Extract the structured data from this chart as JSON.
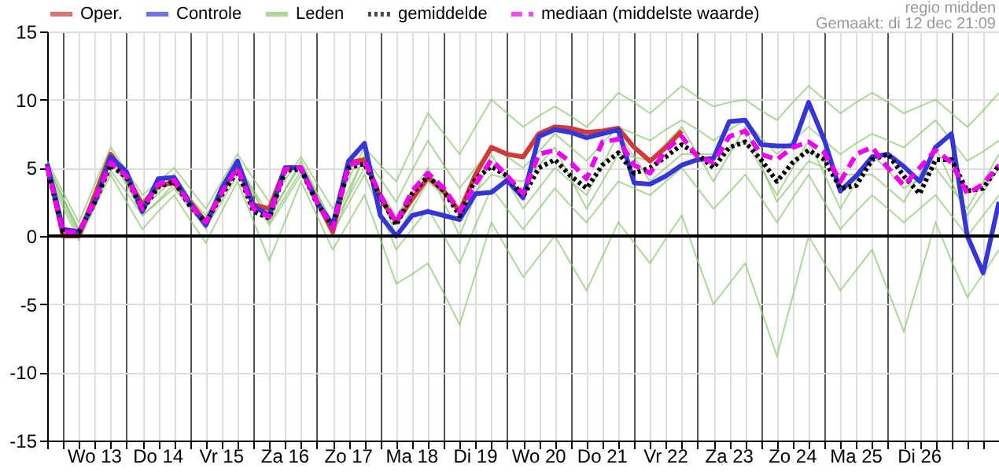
{
  "chart_data": {
    "type": "line",
    "annotations": [
      "regio midden",
      "Gemaakt: di 12 dec 21:09"
    ],
    "categories": [
      null,
      null,
      null,
      "Wo 13",
      null,
      null,
      null,
      "Do 14",
      null,
      null,
      null,
      "Vr 15",
      null,
      null,
      null,
      "Za 16",
      null,
      null,
      null,
      "Zo 17",
      null,
      null,
      null,
      "Ma 18",
      null,
      null,
      null,
      "Di 19",
      null,
      null,
      null,
      "Wo 20",
      null,
      null,
      null,
      "Do 21",
      null,
      null,
      null,
      "Vr 22",
      null,
      null,
      null,
      "Za 23",
      null,
      null,
      null,
      "Zo 24",
      null,
      null,
      null,
      "Ma 25",
      null,
      null,
      null,
      "Di 26",
      null,
      null,
      null,
      null,
      null
    ],
    "series": [
      {
        "name": "Oper.",
        "color": "#d03a3a",
        "values": [
          5.3,
          0.0,
          0.0,
          3.0,
          6.0,
          4.4,
          2.3,
          3.7,
          3.9,
          2.5,
          1.0,
          3.2,
          5.3,
          2.3,
          2.0,
          5.0,
          5.0,
          2.6,
          0.3,
          5.4,
          5.6,
          2.8,
          1.0,
          2.7,
          4.3,
          3.3,
          1.8,
          4.5,
          6.5,
          6.0,
          5.8,
          7.5,
          8.0,
          7.9,
          7.6,
          7.7,
          7.9,
          6.5,
          5.5,
          6.5,
          7.7,
          null,
          null,
          null,
          null,
          null,
          null,
          null,
          null,
          null,
          null,
          null,
          null,
          null,
          null,
          null,
          null,
          null,
          null,
          null,
          null
        ]
      },
      {
        "name": "Controle",
        "color": "#3636d6",
        "values": [
          5.3,
          0.5,
          0.3,
          2.5,
          5.8,
          4.7,
          1.8,
          4.2,
          4.3,
          2.4,
          0.8,
          3.5,
          5.5,
          2.2,
          1.5,
          5.0,
          5.0,
          2.5,
          0.8,
          5.5,
          6.8,
          1.5,
          0.0,
          1.5,
          1.8,
          1.5,
          1.2,
          3.1,
          3.2,
          4.1,
          2.8,
          7.3,
          7.8,
          7.6,
          7.2,
          7.5,
          7.8,
          3.9,
          3.8,
          4.4,
          5.2,
          5.6,
          5.7,
          8.4,
          8.5,
          6.7,
          6.6,
          6.6,
          9.8,
          7.0,
          3.3,
          4.4,
          5.8,
          6.0,
          5.1,
          4.0,
          6.5,
          7.5,
          0.0,
          -2.7,
          2.5
        ]
      },
      {
        "name": "Leden",
        "color": "#8cc870",
        "values": [
          5.5,
          3.2,
          1.0,
          3.8,
          6.5,
          4.8,
          3.0,
          4.0,
          5.0,
          3.5,
          2.0,
          4.0,
          6.0,
          4.2,
          2.5,
          4.1,
          5.8,
          3.9,
          2.0,
          4.2,
          6.5,
          5.2,
          4.0,
          6.5,
          9.0,
          7.5,
          6.0,
          8.0,
          10.0,
          9.0,
          8.0,
          8.8,
          9.5,
          8.8,
          8.0,
          9.2,
          10.5,
          9.8,
          9.0,
          10.0,
          11.0,
          10.2,
          9.5,
          9.8,
          10.0,
          9.2,
          8.5,
          9.8,
          11.0,
          10.0,
          9.0,
          9.8,
          10.5,
          9.8,
          9.0,
          9.5,
          10.0,
          9.0,
          8.0,
          9.2,
          10.5
        ]
      },
      {
        "name": "gemiddelde",
        "color": "#000000",
        "line_style": "dotted",
        "values": [
          5.0,
          0.3,
          0.3,
          2.5,
          5.2,
          4.3,
          1.9,
          3.6,
          4.0,
          2.2,
          1.0,
          3.0,
          4.8,
          1.8,
          1.3,
          4.8,
          4.9,
          2.4,
          0.7,
          5.0,
          5.3,
          2.9,
          0.8,
          3.1,
          4.4,
          3.3,
          1.5,
          4.2,
          5.1,
          4.4,
          2.9,
          5.0,
          5.6,
          4.4,
          3.5,
          5.2,
          6.1,
          4.6,
          5.0,
          5.8,
          6.7,
          6.0,
          5.0,
          6.5,
          6.9,
          5.6,
          4.0,
          5.4,
          6.3,
          5.6,
          3.5,
          3.7,
          5.6,
          6.0,
          4.4,
          3.1,
          5.6,
          5.6,
          3.3,
          3.5,
          5.2
        ]
      },
      {
        "name": "mediaan (middelste waarde)",
        "color": "#ee00ee",
        "line_style": "dashed",
        "values": [
          5.1,
          0.3,
          0.3,
          2.6,
          5.4,
          4.4,
          2.0,
          3.8,
          4.1,
          2.3,
          1.0,
          3.2,
          5.0,
          2.0,
          1.4,
          4.9,
          5.0,
          2.5,
          0.6,
          5.2,
          5.5,
          3.0,
          1.0,
          3.3,
          4.6,
          3.5,
          1.8,
          3.8,
          5.6,
          4.4,
          3.1,
          6.0,
          6.3,
          5.4,
          4.2,
          6.9,
          7.1,
          5.2,
          4.6,
          6.3,
          7.3,
          5.8,
          5.4,
          7.3,
          7.7,
          6.0,
          5.6,
          6.5,
          6.9,
          6.1,
          4.0,
          6.0,
          6.5,
          5.0,
          3.7,
          5.0,
          6.3,
          5.4,
          3.1,
          3.8,
          5.2
        ]
      },
      {
        "color": "#8cc870",
        "values": [
          4.5,
          2.1,
          -0.3,
          2.1,
          4.5,
          2.5,
          0.5,
          1.8,
          3.0,
          1.2,
          -0.5,
          1.8,
          4.0,
          1.1,
          -1.8,
          1.1,
          4.0,
          1.5,
          -1.0,
          1.0,
          3.0,
          -0.2,
          -3.5,
          -2.8,
          -2.0,
          -4.2,
          -6.5,
          -2.8,
          1.0,
          -1.0,
          -3.0,
          -1.5,
          0.0,
          -2.0,
          -4.0,
          -1.5,
          1.0,
          -0.5,
          -2.0,
          -0.2,
          1.5,
          -1.8,
          -5.0,
          -3.5,
          -2.0,
          -5.4,
          -8.8,
          -4.4,
          0.0,
          -2.0,
          -4.0,
          -2.5,
          -1.0,
          -4.0,
          -7.0,
          -3.0,
          1.0,
          -1.8,
          -4.5,
          -2.8,
          -1.0
        ]
      },
      {
        "color": "#8cc870",
        "values": [
          5.2,
          2.8,
          0.5,
          3.2,
          5.8,
          4.0,
          2.2,
          3.4,
          4.5,
          2.8,
          1.2,
          3.2,
          5.2,
          3.4,
          1.5,
          3.4,
          5.2,
          3.1,
          1.0,
          3.4,
          5.8,
          4.2,
          2.5,
          4.8,
          7.0,
          5.2,
          3.5,
          5.0,
          6.5,
          5.8,
          5.0,
          6.2,
          7.5,
          6.5,
          5.5,
          6.8,
          8.0,
          7.5,
          7.0,
          7.8,
          8.5,
          7.8,
          7.0,
          7.8,
          8.5,
          7.2,
          6.0,
          7.0,
          8.0,
          7.0,
          6.0,
          6.8,
          7.5,
          7.0,
          6.5,
          7.5,
          8.5,
          7.0,
          5.5,
          6.2,
          7.0
        ]
      },
      {
        "color": "#8cc870",
        "values": [
          4.8,
          2.4,
          0.0,
          2.4,
          4.8,
          3.2,
          1.5,
          2.5,
          3.5,
          2.0,
          0.6,
          2.5,
          4.5,
          2.6,
          0.8,
          2.6,
          4.5,
          2.4,
          0.3,
          2.4,
          4.5,
          1.8,
          -1.0,
          0.5,
          2.0,
          0.0,
          -2.0,
          0.8,
          3.5,
          2.0,
          0.5,
          2.0,
          3.5,
          2.2,
          1.0,
          2.5,
          4.0,
          3.5,
          3.0,
          4.0,
          5.0,
          3.5,
          2.0,
          3.2,
          4.5,
          2.8,
          1.0,
          2.8,
          4.5,
          2.5,
          0.5,
          1.8,
          3.0,
          2.0,
          1.0,
          2.0,
          3.0,
          1.5,
          0.0,
          1.5,
          3.0
        ]
      },
      {
        "color": "#8cc870",
        "values": [
          5.0,
          2.7,
          0.4,
          3.0,
          5.5,
          3.8,
          2.0,
          3.1,
          4.2,
          2.8,
          1.5,
          3.2,
          5.0,
          3.1,
          1.2,
          3.4,
          5.5,
          3.2,
          0.8,
          2.9,
          5.0,
          3.2,
          1.5,
          3.2,
          5.0,
          2.5,
          0.0,
          3.0,
          6.0,
          4.0,
          2.0,
          3.5,
          5.0,
          4.0,
          3.0,
          5.2,
          7.5,
          5.8,
          4.0,
          5.0,
          6.0,
          6.0,
          6.0,
          6.5,
          7.0,
          5.0,
          3.0,
          5.0,
          7.0,
          4.5,
          2.0,
          4.0,
          6.0,
          4.8,
          3.5,
          4.2,
          5.0,
          3.5,
          2.0,
          4.0,
          6.0
        ]
      },
      {
        "color": "#8cc870",
        "values": [
          5.3,
          2.8,
          0.2,
          3.1,
          6.0,
          3.8,
          1.5,
          2.6,
          3.8,
          2.2,
          0.5,
          3.0,
          5.5,
          3.2,
          1.0,
          2.9,
          4.8,
          2.4,
          0.0,
          3.0,
          6.0,
          3.0,
          0.0,
          2.0,
          4.0,
          3.0,
          2.0,
          3.2,
          4.5,
          4.2,
          4.0,
          5.2,
          6.5,
          4.2,
          2.0,
          4.0,
          6.0,
          5.8,
          5.5,
          6.8,
          8.0,
          6.0,
          4.0,
          6.0,
          8.0,
          5.2,
          2.5,
          4.0,
          5.5,
          5.0,
          4.5,
          4.5,
          4.5,
          3.5,
          2.5,
          4.5,
          6.5,
          4.0,
          1.5,
          3.2,
          5.0
        ]
      }
    ],
    "ylim": [
      -15,
      15
    ],
    "yticks": [
      -15,
      -10,
      -5,
      0,
      5,
      10,
      15
    ],
    "ref_lines": [
      {
        "axis": "y",
        "value": 0,
        "color": "#000000"
      }
    ],
    "grid": true,
    "legend": "top left"
  }
}
